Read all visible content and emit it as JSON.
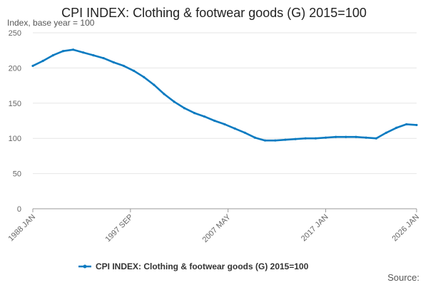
{
  "chart_data": {
    "type": "line",
    "title": "CPI INDEX: Clothing & footwear goods (G) 2015=100",
    "ylabel": "Index, base year = 100",
    "xlabel": "",
    "ylim": [
      0,
      250
    ],
    "yticks": [
      0,
      50,
      100,
      150,
      200,
      250
    ],
    "xlim": [
      1988.0,
      2026.0
    ],
    "xticks": [
      {
        "label": "1988 JAN",
        "value": 1988.0
      },
      {
        "label": "1997 SEP",
        "value": 1997.667
      },
      {
        "label": "2007 MAY",
        "value": 2007.333
      },
      {
        "label": "2017 JAN",
        "value": 2017.0
      },
      {
        "label": "2026 JAN",
        "value": 2026.0
      }
    ],
    "grid": true,
    "legend_position": "bottom",
    "series": [
      {
        "name": "CPI INDEX: Clothing & footwear goods (G) 2015=100",
        "color": "#0b7bc1",
        "x": [
          1988.0,
          1989.0,
          1990.0,
          1991.0,
          1992.0,
          1993.0,
          1994.0,
          1995.0,
          1996.0,
          1997.0,
          1998.0,
          1999.0,
          2000.0,
          2001.0,
          2002.0,
          2003.0,
          2004.0,
          2005.0,
          2006.0,
          2007.0,
          2008.0,
          2009.0,
          2010.0,
          2011.0,
          2012.0,
          2013.0,
          2014.0,
          2015.0,
          2016.0,
          2017.0,
          2018.0,
          2019.0,
          2020.0,
          2021.0,
          2022.0,
          2023.0,
          2024.0,
          2025.0,
          2026.0
        ],
        "values": [
          203,
          210,
          218,
          224,
          226,
          222,
          218,
          214,
          208,
          203,
          196,
          187,
          176,
          163,
          152,
          143,
          136,
          131,
          125,
          120,
          114,
          108,
          101,
          97,
          97,
          98,
          99,
          100,
          100,
          101,
          102,
          102,
          102,
          101,
          100,
          108,
          115,
          120,
          119
        ]
      }
    ]
  },
  "source_label": "Source:"
}
